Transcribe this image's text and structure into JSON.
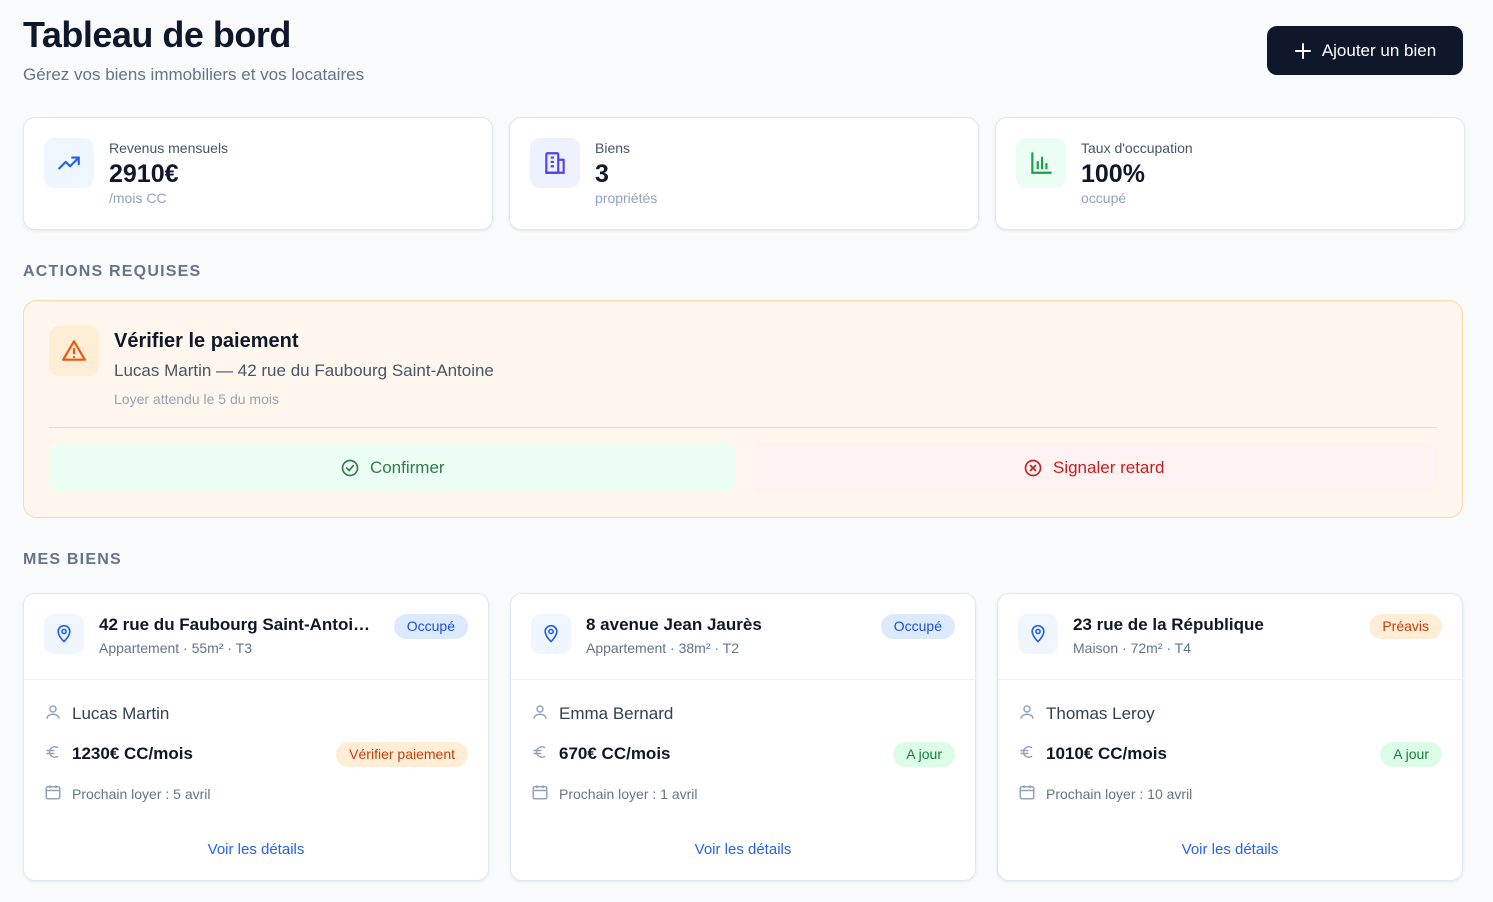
{
  "header": {
    "title": "Tableau de bord",
    "subtitle": "Gérez vos biens immobiliers et vos locataires",
    "button": "Ajouter un bien"
  },
  "stats": [
    {
      "label": "Revenus mensuels",
      "value": "2910€",
      "note": "/mois CC"
    },
    {
      "label": "Biens",
      "value": "3",
      "note": "propriétés"
    },
    {
      "label": "Taux d'occupation",
      "value": "100%",
      "note": "occupé"
    }
  ],
  "actions": {
    "heading": "ACTIONS REQUISES",
    "title": "Vérifier le paiement",
    "detail": "Lucas Martin — 42 rue du Faubourg Saint-Antoine",
    "note": "Loyer attendu le 5 du mois",
    "confirm": "Confirmer",
    "report": "Signaler retard"
  },
  "properties": {
    "heading": "MES BIENS",
    "items": [
      {
        "address": "42 rue du Faubourg Saint-Antoi…",
        "meta": "Appartement · 55m² · T3",
        "status": "Occupé",
        "tenant": "Lucas Martin",
        "rent": "1230€ CC/mois",
        "payment": "Vérifier paiement",
        "next": "Prochain loyer : 5 avril",
        "link": "Voir les détails"
      },
      {
        "address": "8 avenue Jean Jaurès",
        "meta": "Appartement · 38m² · T2",
        "status": "Occupé",
        "tenant": "Emma Bernard",
        "rent": "670€ CC/mois",
        "payment": "A jour",
        "next": "Prochain loyer : 1 avril",
        "link": "Voir les détails"
      },
      {
        "address": "23 rue de la République",
        "meta": "Maison · 72m² · T4",
        "status": "Préavis",
        "tenant": "Thomas Leroy",
        "rent": "1010€ CC/mois",
        "payment": "A jour",
        "next": "Prochain loyer : 10 avril",
        "link": "Voir les détails"
      }
    ]
  }
}
